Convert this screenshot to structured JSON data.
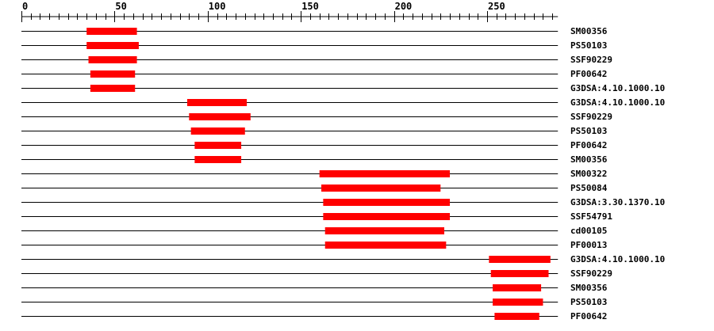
{
  "chart_data": {
    "type": "bar",
    "orientation": "horizontal-range",
    "title": "",
    "xlabel": "",
    "ylabel": "",
    "xlim": [
      0,
      288
    ],
    "x_ticks": [
      0,
      50,
      100,
      150,
      200,
      250
    ],
    "minor_tick_step": 5,
    "bar_color": "#ff0000",
    "line_color": "#000000",
    "grid": false,
    "rows": [
      {
        "label": "SM00356",
        "start": 35,
        "end": 62
      },
      {
        "label": "PS50103",
        "start": 35,
        "end": 63
      },
      {
        "label": "SSF90229",
        "start": 36,
        "end": 62
      },
      {
        "label": "PF00642",
        "start": 37,
        "end": 61
      },
      {
        "label": "G3DSA:4.10.1000.10",
        "start": 37,
        "end": 61
      },
      {
        "label": "G3DSA:4.10.1000.10",
        "start": 89,
        "end": 121
      },
      {
        "label": "SSF90229",
        "start": 90,
        "end": 123
      },
      {
        "label": "PS50103",
        "start": 91,
        "end": 120
      },
      {
        "label": "PF00642",
        "start": 93,
        "end": 118
      },
      {
        "label": "SM00356",
        "start": 93,
        "end": 118
      },
      {
        "label": "SM00322",
        "start": 160,
        "end": 230
      },
      {
        "label": "PS50084",
        "start": 161,
        "end": 225
      },
      {
        "label": "G3DSA:3.30.1370.10",
        "start": 162,
        "end": 230
      },
      {
        "label": "SSF54791",
        "start": 162,
        "end": 230
      },
      {
        "label": "cd00105",
        "start": 163,
        "end": 227
      },
      {
        "label": "PF00013",
        "start": 163,
        "end": 228
      },
      {
        "label": "G3DSA:4.10.1000.10",
        "start": 251,
        "end": 284
      },
      {
        "label": "SSF90229",
        "start": 252,
        "end": 283
      },
      {
        "label": "SM00356",
        "start": 253,
        "end": 279
      },
      {
        "label": "PS50103",
        "start": 253,
        "end": 280
      },
      {
        "label": "PF00642",
        "start": 254,
        "end": 278
      }
    ]
  }
}
